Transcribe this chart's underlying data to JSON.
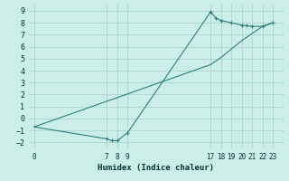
{
  "xlabel": "Humidex (Indice chaleur)",
  "background_color": "#cceee8",
  "grid_color": "#aad4ce",
  "line_color": "#2d7d7d",
  "marker_color": "#2d7d7d",
  "x_data": [
    0,
    7,
    7.5,
    8,
    9,
    17,
    17.5,
    18,
    19,
    20,
    20.5,
    21,
    22,
    23
  ],
  "y_data": [
    -0.7,
    -1.7,
    -1.85,
    -1.85,
    -1.2,
    8.9,
    8.4,
    8.2,
    8.0,
    7.8,
    7.75,
    7.7,
    7.7,
    8.0
  ],
  "x2_data": [
    0,
    17,
    18,
    19,
    20,
    21,
    22,
    23
  ],
  "y2_data": [
    -0.7,
    4.5,
    5.1,
    5.8,
    6.5,
    7.1,
    7.7,
    8.0
  ],
  "xlim": [
    -0.5,
    24
  ],
  "ylim": [
    -2.5,
    9.6
  ],
  "xticks": [
    0,
    7,
    8,
    9,
    17,
    18,
    19,
    20,
    21,
    22,
    23
  ],
  "yticks": [
    -2,
    -1,
    0,
    1,
    2,
    3,
    4,
    5,
    6,
    7,
    8,
    9
  ]
}
